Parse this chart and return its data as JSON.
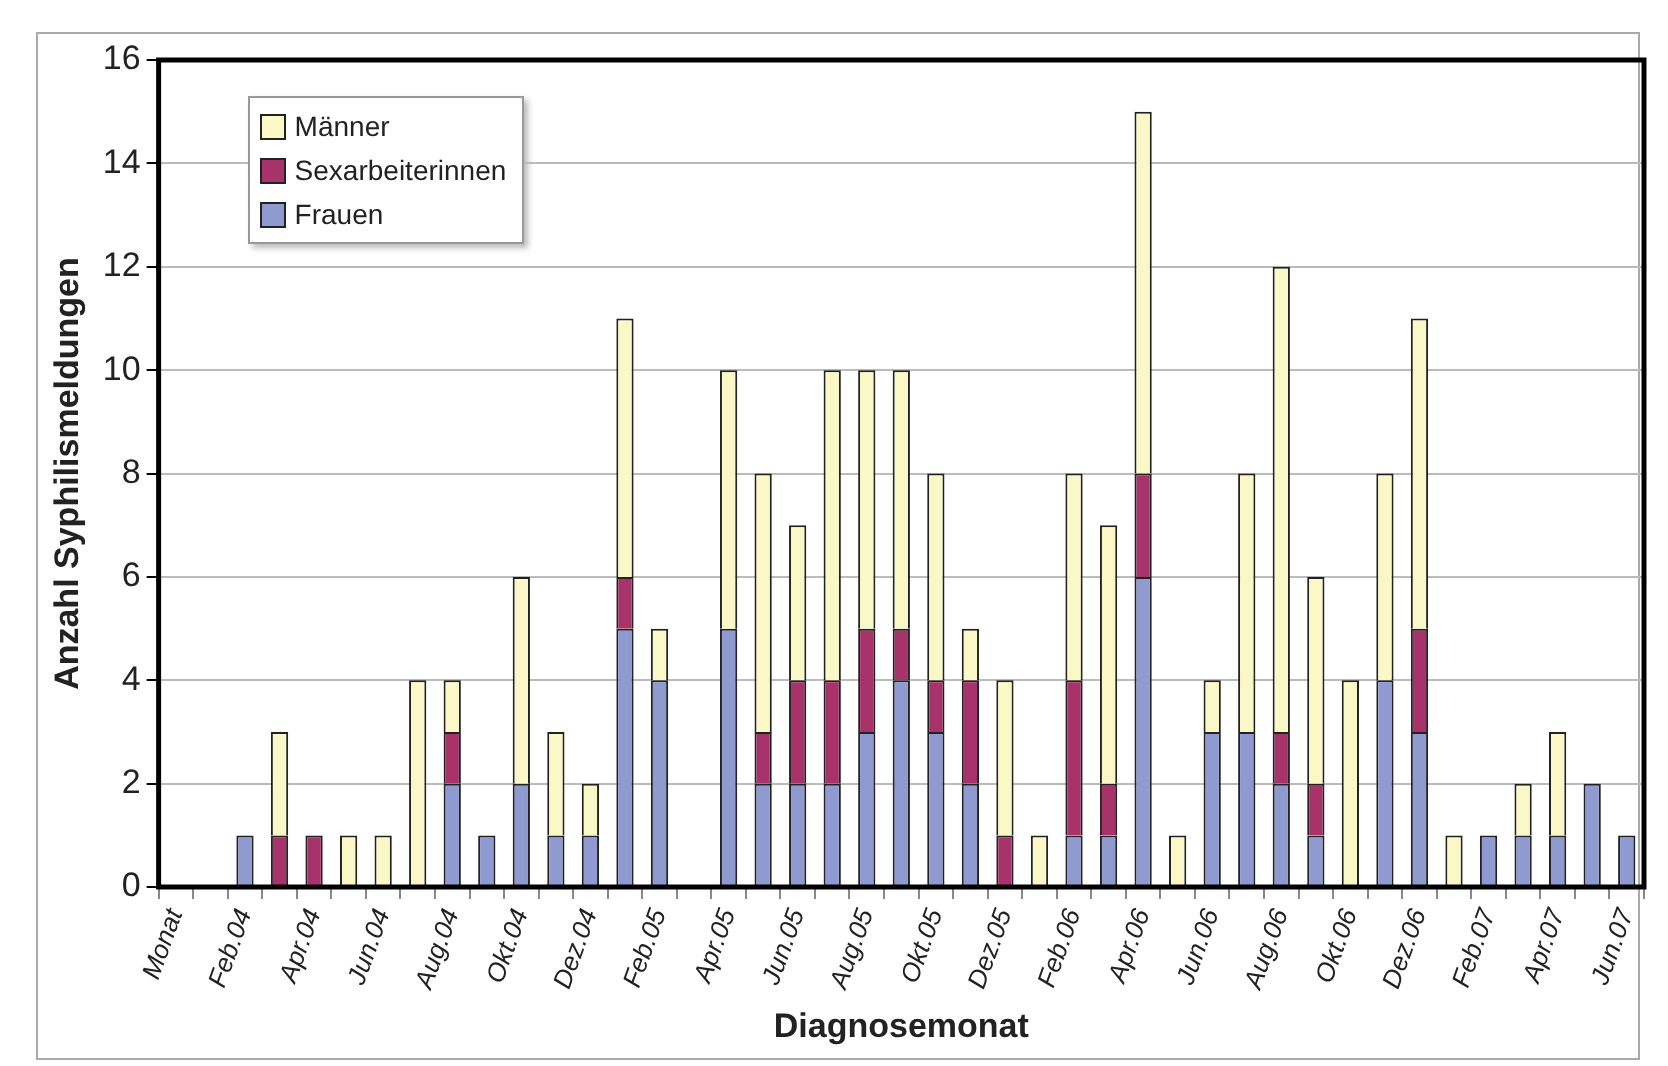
{
  "chart_data": {
    "type": "bar",
    "stacked": true,
    "xlabel": "Diagnosemonat",
    "ylabel": "Anzahl Syphilismeldungen",
    "categories": [
      "Monat",
      null,
      "Feb.04",
      null,
      "Apr.04",
      null,
      "Jun.04",
      null,
      "Aug.04",
      null,
      "Okt.04",
      null,
      "Dez.04",
      null,
      "Feb.05",
      null,
      "Apr.05",
      null,
      "Jun.05",
      null,
      "Aug.05",
      null,
      "Okt.05",
      null,
      "Dez.05",
      null,
      "Feb.06",
      null,
      "Apr.06",
      null,
      "Jun.06",
      null,
      "Aug.06",
      null,
      "Okt.06",
      null,
      "Dez.06",
      null,
      "Feb.07",
      null,
      "Apr.07",
      null,
      "Jun.07"
    ],
    "series": [
      {
        "name": "Frauen",
        "color": "#8e9ad0",
        "values": [
          0,
          0,
          1,
          0,
          0,
          0,
          0,
          0,
          2,
          1,
          2,
          1,
          1,
          5,
          4,
          0,
          5,
          2,
          2,
          2,
          3,
          4,
          3,
          2,
          0,
          0,
          1,
          1,
          6,
          0,
          3,
          3,
          2,
          1,
          0,
          4,
          3,
          0,
          1,
          1,
          1,
          2,
          1
        ]
      },
      {
        "name": "Sexarbeiterinnen",
        "color": "#a8336a",
        "values": [
          0,
          0,
          0,
          1,
          1,
          0,
          0,
          0,
          1,
          0,
          0,
          0,
          0,
          1,
          0,
          0,
          0,
          1,
          2,
          2,
          2,
          1,
          1,
          2,
          1,
          0,
          3,
          1,
          2,
          0,
          0,
          0,
          1,
          1,
          0,
          0,
          2,
          0,
          0,
          0,
          0,
          0,
          0
        ]
      },
      {
        "name": "Männer",
        "color": "#fbf8c8",
        "values": [
          0,
          0,
          0,
          2,
          0,
          1,
          1,
          4,
          1,
          0,
          4,
          2,
          1,
          5,
          1,
          0,
          5,
          5,
          3,
          6,
          5,
          5,
          4,
          1,
          3,
          1,
          4,
          5,
          7,
          1,
          1,
          5,
          9,
          4,
          4,
          4,
          6,
          1,
          0,
          1,
          2,
          0,
          0
        ]
      }
    ],
    "ylim": [
      0,
      16
    ],
    "yticks": [
      0,
      2,
      4,
      6,
      8,
      10,
      12,
      14,
      16
    ],
    "grid": "y",
    "legend": "top left"
  }
}
